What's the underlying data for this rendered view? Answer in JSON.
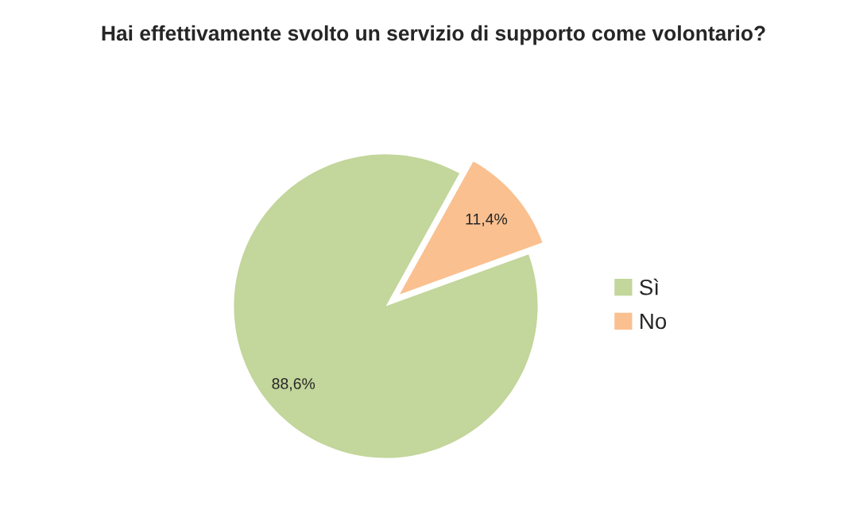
{
  "chart_data": {
    "type": "pie",
    "title": "Hai effettivamente svolto un servizio di supporto come volontario?",
    "categories": [
      "Sì",
      "No"
    ],
    "values": [
      88.6,
      11.4
    ],
    "value_labels": [
      "88,6%",
      "11,4%"
    ],
    "colors": [
      "#c3d69b",
      "#fac090"
    ],
    "legend": "right"
  }
}
